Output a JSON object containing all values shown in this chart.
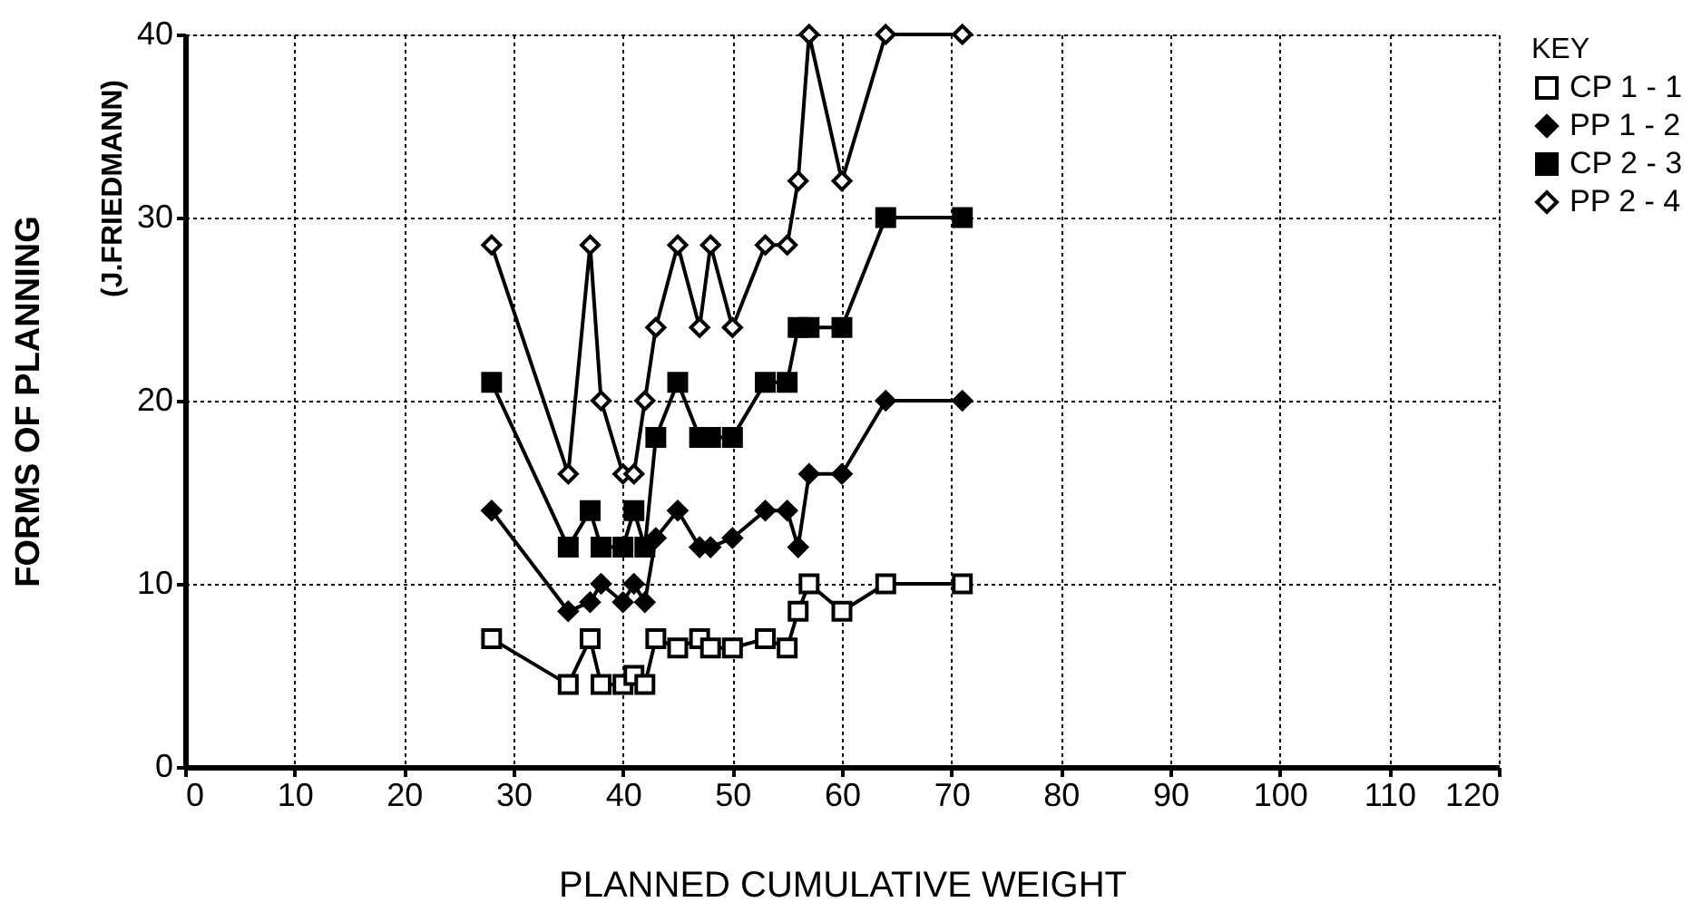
{
  "chart_data": {
    "type": "line",
    "xlabel": "PLANNED CUMULATIVE WEIGHT",
    "ylabel": "FORMS OF PLANNING",
    "annotations": [
      "(J.FRIEDMANN)"
    ],
    "legend_title": "KEY",
    "legend": "right",
    "grid": true,
    "line_style": "solid",
    "x": [
      28,
      35,
      37,
      38,
      40,
      41,
      42,
      43,
      45,
      47,
      48,
      50,
      53,
      55,
      56,
      57,
      60,
      64,
      71
    ],
    "xlim": [
      0,
      120
    ],
    "xticks": [
      0,
      10,
      20,
      30,
      40,
      50,
      60,
      70,
      80,
      90,
      100,
      110,
      120
    ],
    "ylim": [
      0,
      40
    ],
    "yticks": [
      0,
      10,
      20,
      30,
      40
    ],
    "series": [
      {
        "name": "CP 1 - 1",
        "color": "#000000",
        "marker": "square",
        "values": [
          7,
          4.5,
          7,
          4.5,
          4.5,
          5,
          4.5,
          7,
          6.5,
          7,
          6.5,
          6.5,
          7,
          6.5,
          8.5,
          10,
          8.5,
          10,
          10
        ]
      },
      {
        "name": "PP 1 - 2",
        "color": "#000000",
        "marker": "diamond",
        "values": [
          14,
          8.5,
          9,
          10,
          9,
          10,
          9,
          12.5,
          14,
          12,
          12,
          12.5,
          14,
          14,
          12,
          16,
          16,
          20,
          20
        ]
      },
      {
        "name": "CP 2 - 3",
        "color": "#000000",
        "marker": "square",
        "values": [
          21,
          12,
          14,
          12,
          12,
          14,
          12,
          18,
          21,
          18,
          18,
          18,
          21,
          21,
          24,
          24,
          24,
          30,
          30
        ]
      },
      {
        "name": "PP 2 - 4",
        "color": "#000000",
        "marker": "diamond",
        "values": [
          28.5,
          16,
          28.5,
          20,
          16,
          16,
          20,
          24,
          28.5,
          24,
          28.5,
          24,
          28.5,
          28.5,
          32,
          40,
          32,
          40,
          40
        ]
      }
    ]
  }
}
